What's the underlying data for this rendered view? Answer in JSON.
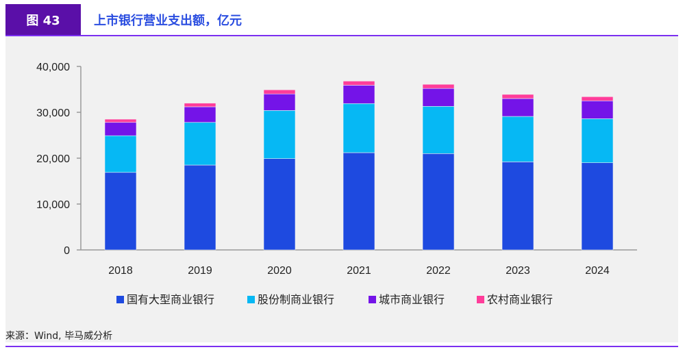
{
  "header": {
    "figure_label": "图 43",
    "title": "上市银行营业支出额，亿元"
  },
  "source": "来源：Wind, 毕马威分析",
  "chart_data": {
    "type": "bar",
    "stacked": true,
    "title": "上市银行营业支出额，亿元",
    "categories": [
      "2018",
      "2019",
      "2020",
      "2021",
      "2022",
      "2023",
      "2024"
    ],
    "ylim": [
      0,
      40000
    ],
    "yticks": [
      "0",
      "10,000",
      "20,000",
      "30,000",
      "40,000"
    ],
    "series": [
      {
        "name": "国有大型商业银行",
        "color": "#1e4ae0",
        "values": [
          16900,
          18500,
          19900,
          21200,
          21000,
          19200,
          19000
        ]
      },
      {
        "name": "股份制商业银行",
        "color": "#06b8f4",
        "values": [
          8000,
          9300,
          10500,
          10700,
          10300,
          9900,
          9600
        ]
      },
      {
        "name": "城市商业银行",
        "color": "#7414e8",
        "values": [
          2900,
          3400,
          3600,
          4000,
          3900,
          3900,
          3900
        ]
      },
      {
        "name": "农村商业银行",
        "color": "#ff3d9a",
        "values": [
          700,
          800,
          900,
          900,
          900,
          900,
          900
        ]
      }
    ],
    "legend": "bottom"
  }
}
